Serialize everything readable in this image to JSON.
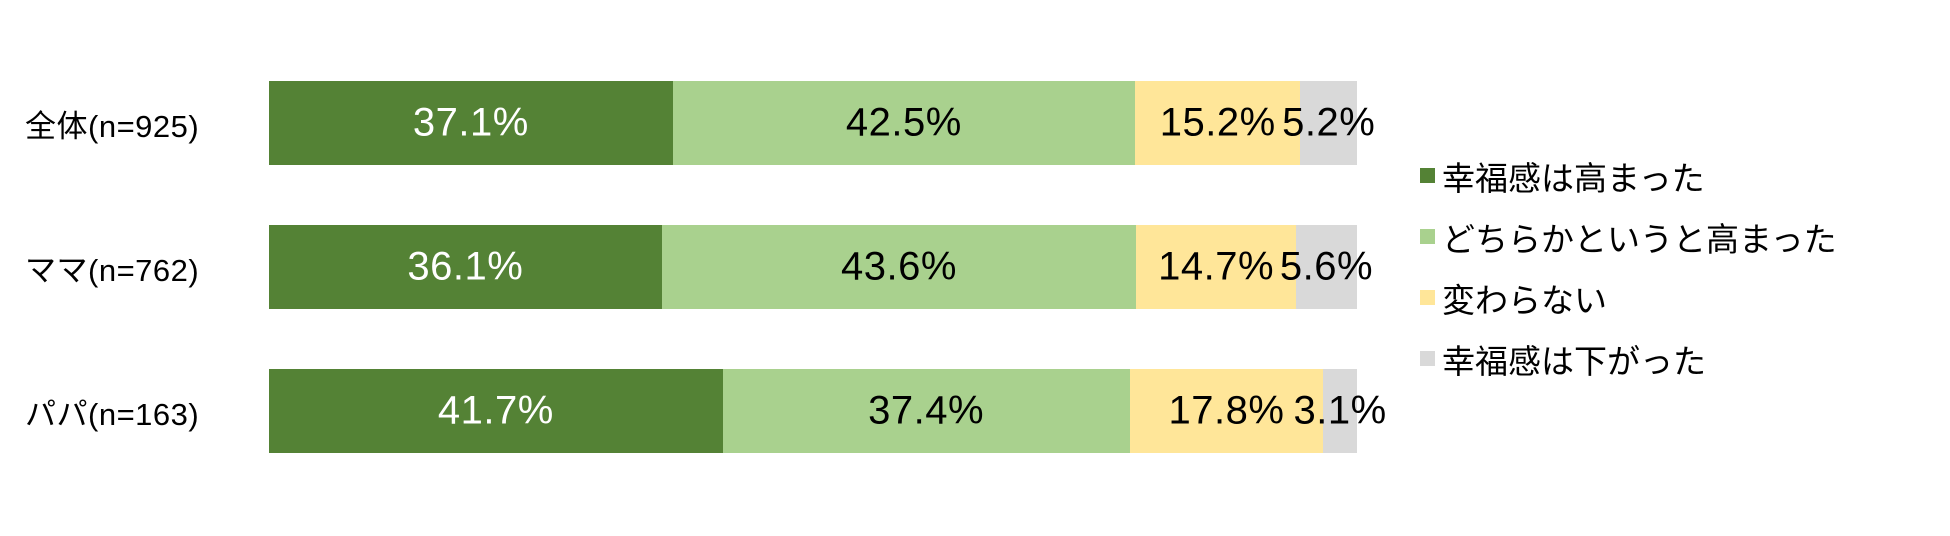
{
  "page": {
    "background_color": "#ffffff",
    "text_color": "#000000"
  },
  "chart_data": {
    "type": "bar",
    "orientation": "horizontal",
    "stacked": true,
    "unit": "%",
    "title": "",
    "xlabel": "",
    "ylabel": "",
    "xlim": [
      0,
      100
    ],
    "grid": false,
    "axes_visible": false,
    "legend_position": "right",
    "categories": [
      "全体(n=925)",
      "ママ(n=762)",
      "パパ(n=163)"
    ],
    "series": [
      {
        "name": "幸福感は高まった",
        "color": "#548235",
        "label_color": "#ffffff",
        "values": [
          37.1,
          36.1,
          41.7
        ]
      },
      {
        "name": "どちらかというと高まった",
        "color": "#a9d18e",
        "label_color": "#000000",
        "values": [
          42.5,
          43.6,
          37.4
        ]
      },
      {
        "name": "変わらない",
        "color": "#ffe699",
        "label_color": "#000000",
        "values": [
          15.2,
          14.7,
          17.8
        ]
      },
      {
        "name": "幸福感は下がった",
        "color": "#d9d9d9",
        "label_color": "#000000",
        "values": [
          5.2,
          5.6,
          3.1
        ]
      }
    ],
    "value_labels": [
      [
        "37.1%",
        "42.5%",
        "15.2%",
        "5.2%"
      ],
      [
        "36.1%",
        "43.6%",
        "14.7%",
        "5.6%"
      ],
      [
        "41.7%",
        "37.4%",
        "17.8%",
        "3.1%"
      ]
    ]
  }
}
